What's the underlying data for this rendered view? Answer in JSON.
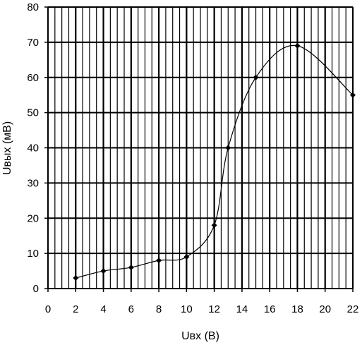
{
  "chart_data": {
    "type": "line",
    "xlabel": "Uвх (В)",
    "ylabel": "Uвых (мВ)",
    "xlim": [
      0,
      22
    ],
    "ylim": [
      0,
      80
    ],
    "x_ticks": [
      "0",
      "2",
      "4",
      "6",
      "8",
      "10",
      "12",
      "14",
      "16",
      "18",
      "20",
      "22"
    ],
    "y_ticks": [
      "0",
      "10",
      "20",
      "30",
      "40",
      "50",
      "60",
      "70",
      "80"
    ],
    "grid": true,
    "legend": "none",
    "series": [
      {
        "x": [
          2,
          4,
          6,
          8,
          10,
          12,
          13,
          15,
          18,
          22
        ],
        "y": [
          3,
          5,
          6,
          8,
          9,
          18,
          40,
          60,
          69,
          55
        ],
        "color": "#000000",
        "marker": "diamond",
        "smooth": true
      }
    ]
  }
}
